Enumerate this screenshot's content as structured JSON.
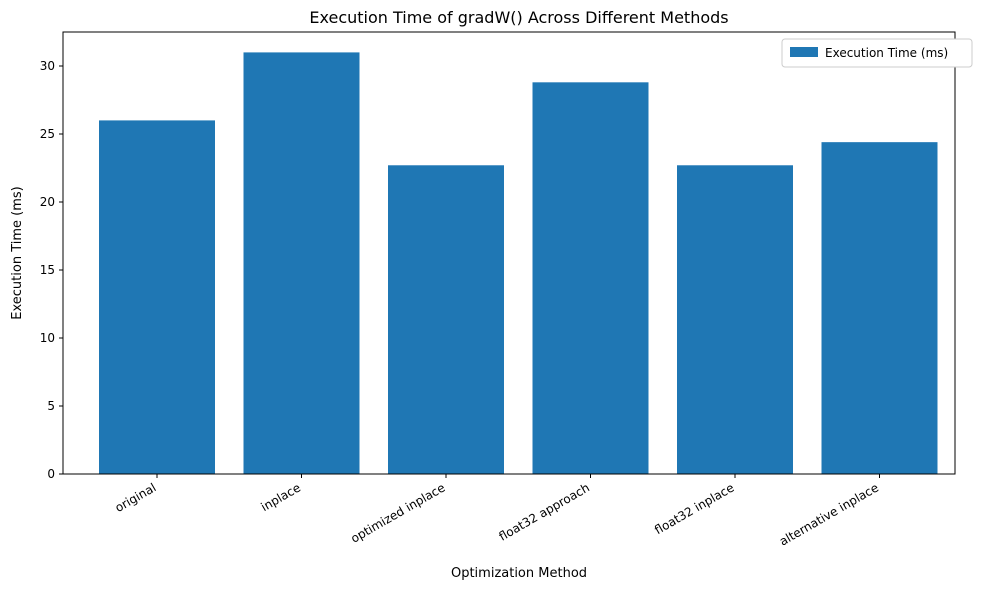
{
  "chart_data": {
    "type": "bar",
    "title": "Execution Time of gradW() Across Different Methods",
    "xlabel": "Optimization Method",
    "ylabel": "Execution Time (ms)",
    "categories": [
      "original",
      "inplace",
      "optimized inplace",
      "float32 approach",
      "float32 inplace",
      "alternative inplace"
    ],
    "series": [
      {
        "name": "Execution Time (ms)",
        "values": [
          26.0,
          31.0,
          22.7,
          28.8,
          22.7,
          24.4
        ],
        "color": "#1f77b4"
      }
    ],
    "ylim": [
      0,
      32.5
    ],
    "yticks": [
      0,
      5,
      10,
      15,
      20,
      25,
      30
    ],
    "grid": false,
    "legend": "top-right"
  }
}
